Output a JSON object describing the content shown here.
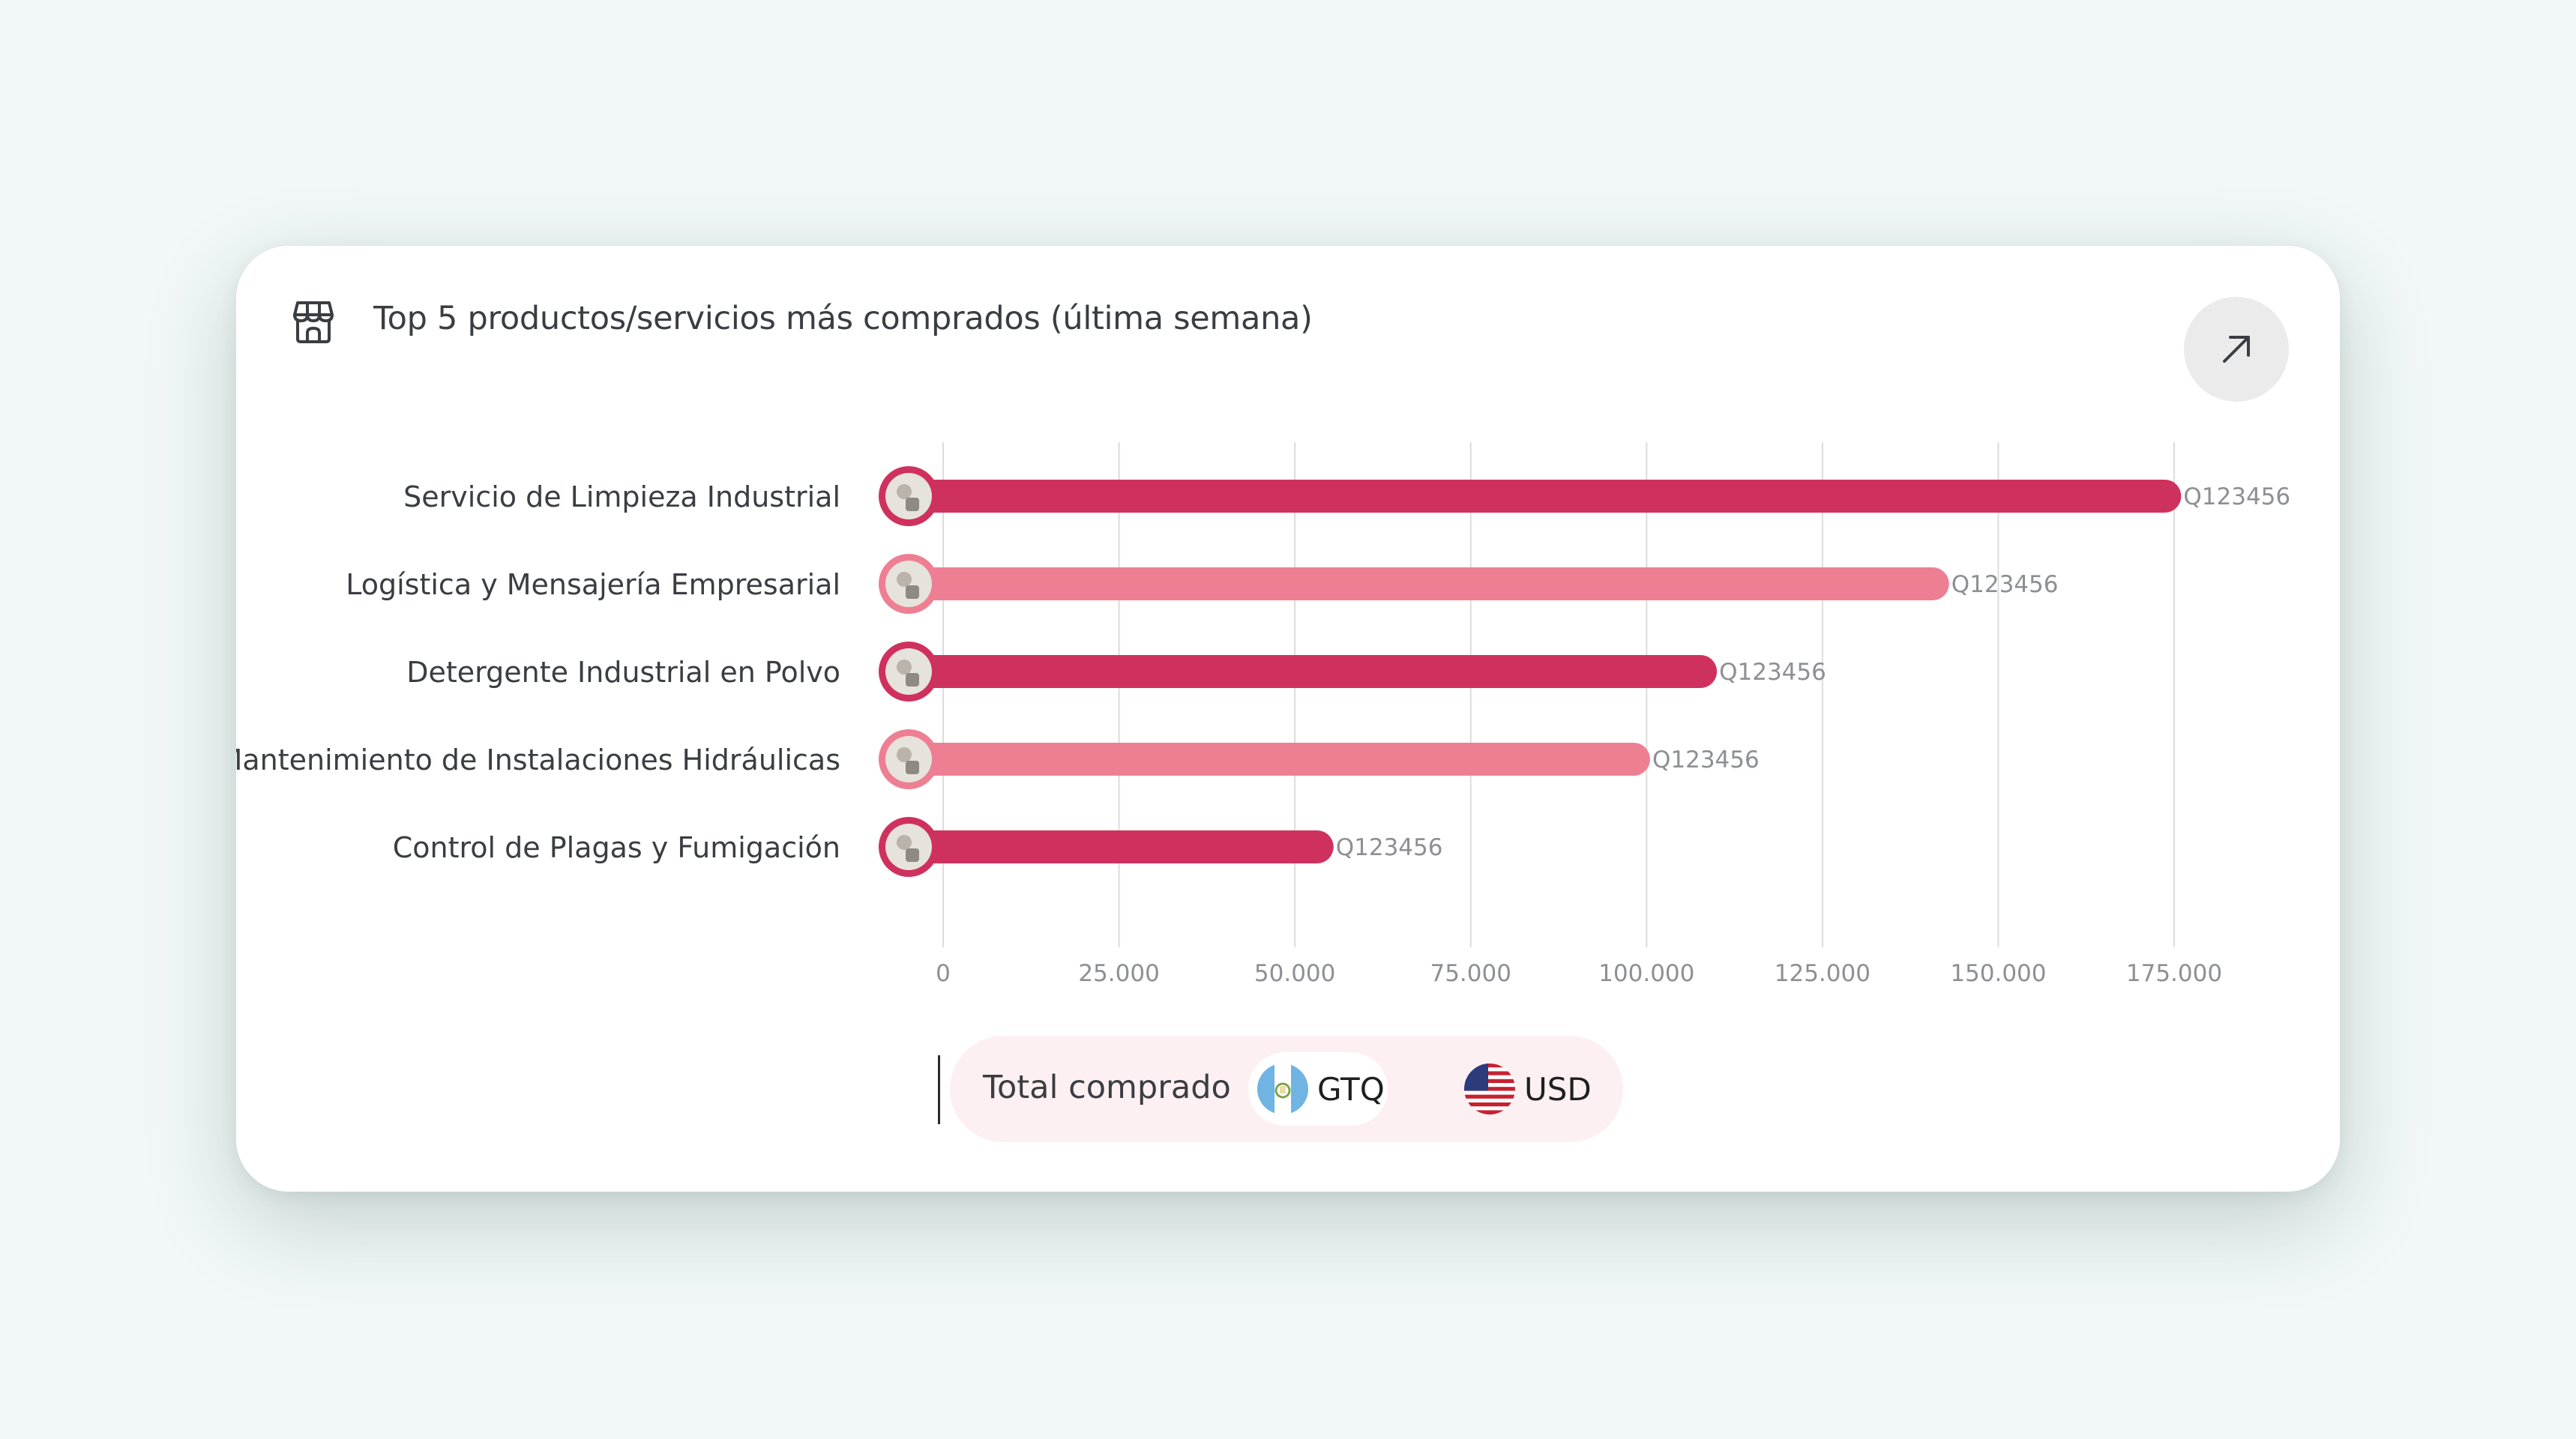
{
  "card": {
    "title": "Top 5 productos/servicios más comprados (última semana)",
    "header_icon": "storefront-icon",
    "expand_icon": "arrow-up-right-icon"
  },
  "chart_data": {
    "type": "bar",
    "orientation": "horizontal",
    "title": "Top 5 productos/servicios más comprados (última semana)",
    "categories": [
      "Servicio de Limpieza Industrial",
      "Logística y Mensajería Empresarial",
      "Detergente Industrial en Polvo",
      "Mantenimiento de Instalaciones Hidráulicas",
      "Control de Plagas y Fumigación"
    ],
    "values": [
      176000,
      143000,
      110000,
      100500,
      55500
    ],
    "value_labels": [
      "Q123456",
      "Q123456",
      "Q123456",
      "Q123456",
      "Q123456"
    ],
    "bar_colors": [
      "#cf315e",
      "#ee7f93",
      "#cf315e",
      "#ee7f93",
      "#cf315e"
    ],
    "xlim": [
      0,
      175000
    ],
    "xticks": [
      0,
      25000,
      50000,
      75000,
      100000,
      125000,
      150000,
      175000
    ],
    "xtick_labels": [
      "0",
      "25.000",
      "50.000",
      "75.000",
      "100.000",
      "125.000",
      "150.000",
      "175.000"
    ],
    "grid": "vertical",
    "xlabel": "",
    "ylabel": ""
  },
  "legend": {
    "label": "Total comprado",
    "currencies": [
      {
        "code": "GTQ",
        "flag": "guatemala-flag-icon",
        "active": true
      },
      {
        "code": "USD",
        "flag": "usa-flag-icon",
        "active": false
      }
    ]
  },
  "colors": {
    "accent": "#cf315e",
    "accent_light": "#ee7f93",
    "background": "#f1f8f7",
    "legend_bg": "#fdf0f2"
  }
}
